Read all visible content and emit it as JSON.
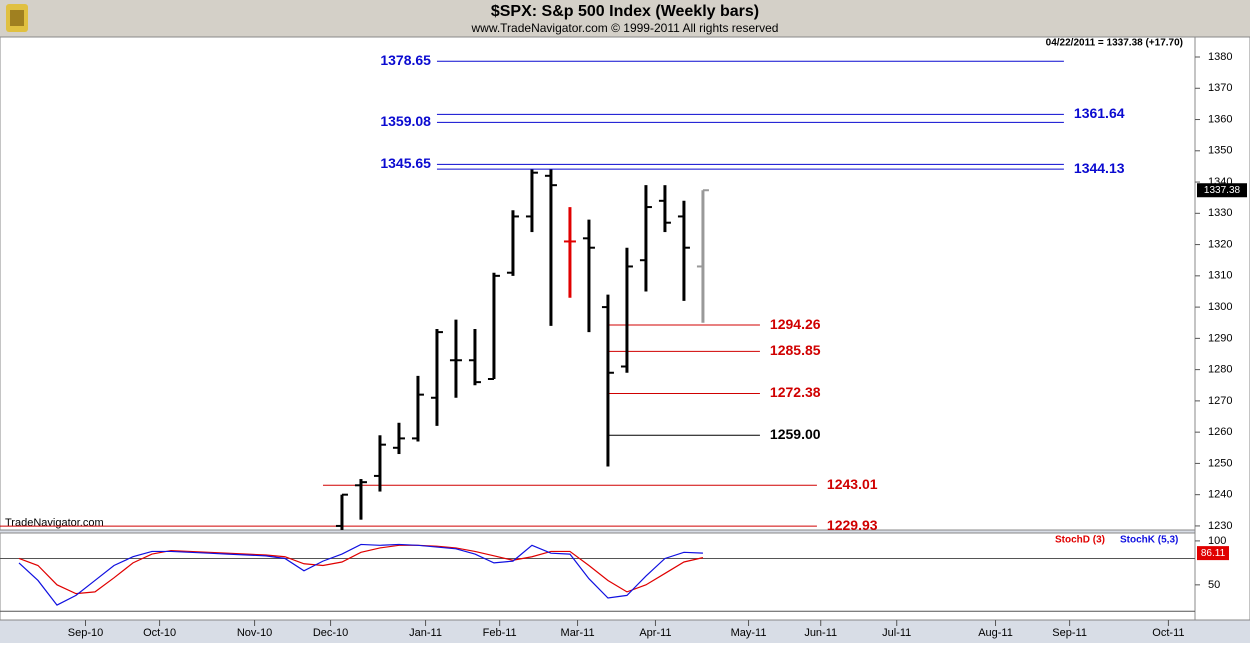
{
  "chart_data": [
    {
      "type": "ohlc",
      "title": "$SPX:  S&p 500 Index  (Weekly bars)",
      "subtitle": "www.TradeNavigator.com © 1999-2011 All rights reserved",
      "header_note": "04/22/2011 = 1337.38 (+17.70)",
      "watermark": "TradeNavigator.com",
      "xlim": [
        0,
        62.9
      ],
      "ylim": [
        1228.7,
        1386.4
      ],
      "yticks": [
        1230,
        1240,
        1250,
        1260,
        1270,
        1280,
        1290,
        1300,
        1310,
        1320,
        1330,
        1340,
        1350,
        1360,
        1370,
        1380
      ],
      "x": [
        18,
        19,
        20,
        21,
        22,
        23,
        24,
        25,
        26,
        27,
        28,
        29,
        30,
        31,
        32,
        33,
        34,
        35,
        36,
        37
      ],
      "open": [
        1230,
        1243,
        1246,
        1255,
        1258,
        1271,
        1283,
        1283,
        1277,
        1311,
        1329,
        1342,
        1321,
        1322,
        1300,
        1281,
        1315,
        1334,
        1329,
        1313
      ],
      "high": [
        1240,
        1245,
        1259,
        1263,
        1278,
        1293,
        1296,
        1293,
        1311,
        1331,
        1344,
        1344,
        1332,
        1328,
        1304,
        1319,
        1339,
        1339,
        1334,
        1337.38
      ],
      "low": [
        1228,
        1232,
        1241,
        1253,
        1257,
        1262,
        1271,
        1275,
        1277,
        1310,
        1324,
        1294,
        1303,
        1292,
        1249,
        1279,
        1305,
        1324,
        1302,
        1295
      ],
      "close": [
        1240,
        1244,
        1256,
        1258,
        1272,
        1292,
        1283,
        1276,
        1310,
        1329,
        1343,
        1339,
        1321,
        1319,
        1279,
        1313,
        1332,
        1327,
        1319,
        1337.38
      ],
      "colors": [
        "#000",
        "#000",
        "#000",
        "#000",
        "#000",
        "#000",
        "#000",
        "#000",
        "#000",
        "#000",
        "#000",
        "#000",
        "#e00000",
        "#000",
        "#000",
        "#000",
        "#000",
        "#000",
        "#000",
        "#999"
      ],
      "levels": [
        {
          "value": 1378.65,
          "color": "#0a0ad0",
          "from": 23,
          "to": 56,
          "side": "left"
        },
        {
          "value": 1361.64,
          "color": "#0a0ad0",
          "from": 23,
          "to": 56,
          "side": "right"
        },
        {
          "value": 1359.08,
          "color": "#0a0ad0",
          "from": 23,
          "to": 56,
          "side": "left"
        },
        {
          "value": 1345.65,
          "color": "#0a0ad0",
          "from": 23,
          "to": 56,
          "side": "left"
        },
        {
          "value": 1344.13,
          "color": "#0a0ad0",
          "from": 23,
          "to": 56,
          "side": "right"
        },
        {
          "value": 1294.26,
          "color": "#d00000",
          "from": 32,
          "to": 40,
          "side": "right"
        },
        {
          "value": 1285.85,
          "color": "#d00000",
          "from": 32,
          "to": 40,
          "side": "right"
        },
        {
          "value": 1272.38,
          "color": "#d00000",
          "from": 32,
          "to": 40,
          "side": "right"
        },
        {
          "value": 1259,
          "label": "1259.00",
          "color": "#000000",
          "from": 32,
          "to": 40,
          "side": "right"
        },
        {
          "value": 1243.01,
          "color": "#d00000",
          "from": 17,
          "to": 43,
          "side": "right"
        },
        {
          "value": 1229.93,
          "color": "#d00000",
          "from": 0,
          "to": 43,
          "side": "right"
        }
      ]
    },
    {
      "type": "line",
      "xlim": [
        0,
        62.9
      ],
      "ylim": [
        10,
        109
      ],
      "yticks": [
        100,
        50
      ],
      "ref_lines": [
        80,
        20
      ],
      "xticks": [
        {
          "value": 4.5,
          "label": "Sep-10"
        },
        {
          "value": 8.4,
          "label": "Oct-10"
        },
        {
          "value": 13.4,
          "label": "Nov-10"
        },
        {
          "value": 17.4,
          "label": "Dec-10"
        },
        {
          "value": 22.4,
          "label": "Jan-11"
        },
        {
          "value": 26.3,
          "label": "Feb-11"
        },
        {
          "value": 30.4,
          "label": "Mar-11"
        },
        {
          "value": 34.5,
          "label": "Apr-11"
        },
        {
          "value": 39.4,
          "label": "May-11"
        },
        {
          "value": 43.2,
          "label": "Jun-11"
        },
        {
          "value": 47.2,
          "label": "Jul-11"
        },
        {
          "value": 52.4,
          "label": "Aug-11"
        },
        {
          "value": 56.3,
          "label": "Sep-11"
        },
        {
          "value": 61.5,
          "label": "Oct-11"
        }
      ],
      "x": [
        1,
        2,
        3,
        4,
        5,
        6,
        7,
        8,
        9,
        10,
        11,
        12,
        13,
        14,
        15,
        16,
        17,
        18,
        19,
        20,
        21,
        22,
        23,
        24,
        25,
        26,
        27,
        28,
        29,
        30,
        31,
        32,
        33,
        34,
        35,
        36,
        37
      ],
      "series": [
        {
          "name": "StochD (3)",
          "color": "#e00000",
          "values": [
            80,
            72,
            50,
            40,
            42,
            58,
            75,
            85,
            89,
            88,
            87,
            86,
            85,
            84,
            82,
            74,
            72,
            76,
            87,
            92,
            95,
            95,
            94,
            92,
            88,
            83,
            78,
            82,
            88,
            88,
            72,
            55,
            42,
            50,
            63,
            76,
            81
          ]
        },
        {
          "name": "StochK (5,3)",
          "color": "#1010e0",
          "values": [
            75,
            55,
            27,
            38,
            55,
            72,
            82,
            88,
            88,
            87,
            86,
            85,
            84,
            83,
            80,
            66,
            77,
            85,
            96,
            95,
            96,
            95,
            93,
            91,
            85,
            75,
            77,
            95,
            86,
            85,
            57,
            35,
            38,
            60,
            80,
            87,
            86.11
          ]
        }
      ]
    }
  ]
}
